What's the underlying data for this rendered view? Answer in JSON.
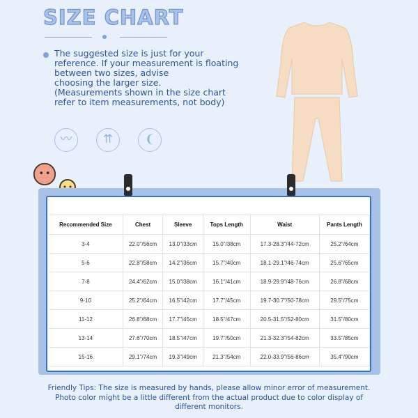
{
  "header": {
    "title": "SIZE CHART"
  },
  "note": "The suggested size is just for your reference. If your measurement is floating between two sizes, advise\n choosing the larger size.\n(Measurements shown in the size chart refer to item measurements, not body)",
  "feature_icons": [
    "feather-soft-icon",
    "breathable-icon",
    "stretch-icon"
  ],
  "table": {
    "headers": [
      "Recommended Size",
      "Chest",
      "Sleeve",
      "Tops Length",
      "Waist",
      "Pants Length"
    ],
    "rows": [
      [
        "3-4",
        "22.0\"/56cm",
        "13.0\"/33cm",
        "15.0\"/38cm",
        "17.3-28.3\"/44-72cm",
        "25.2\"/64cm"
      ],
      [
        "5-6",
        "22.8\"/58cm",
        "14.2\"/36cm",
        "15.7\"/40cm",
        "18.1-29.1\"/46-74cm",
        "25.6\"/65cm"
      ],
      [
        "7-8",
        "24.4\"/62cm",
        "15.0\"/38cm",
        "16.1\"/41cm",
        "18.9-29.9\"/48-76cm",
        "26.8\"/68cm"
      ],
      [
        "9-10",
        "25.2\"/64cm",
        "16.5\"/42cm",
        "17.7\"/45cm",
        "19.7-30.7\"/50-78cm",
        "29.5\"/75cm"
      ],
      [
        "11-12",
        "26.8\"/68cm",
        "17.7\"/45cm",
        "18.5\"/47cm",
        "20.5-31.5\"/52-80cm",
        "31.5\"/80cm"
      ],
      [
        "13-14",
        "27.6\"/70cm",
        "18.5\"/47cm",
        "19.7\"/50cm",
        "21.3-32.3\"/54-82cm",
        "33.5\"/85cm"
      ],
      [
        "15-16",
        "29.1\"/74cm",
        "19.3\"/49cm",
        "21.3\"/54cm",
        "22.0-33.9\"/56-86cm",
        "35.4\"/90cm"
      ]
    ]
  },
  "tips": "Friendly Tips: The size is measured by hands, please allow minor error of measurement.\nPhoto color might be a little different from the actual product due to color display of\ndifferent monitors.",
  "colors": {
    "background": "#e7f0fb",
    "accent": "#3c72c6",
    "text": "#2a4f9a",
    "garment": "#f6dcc2"
  }
}
